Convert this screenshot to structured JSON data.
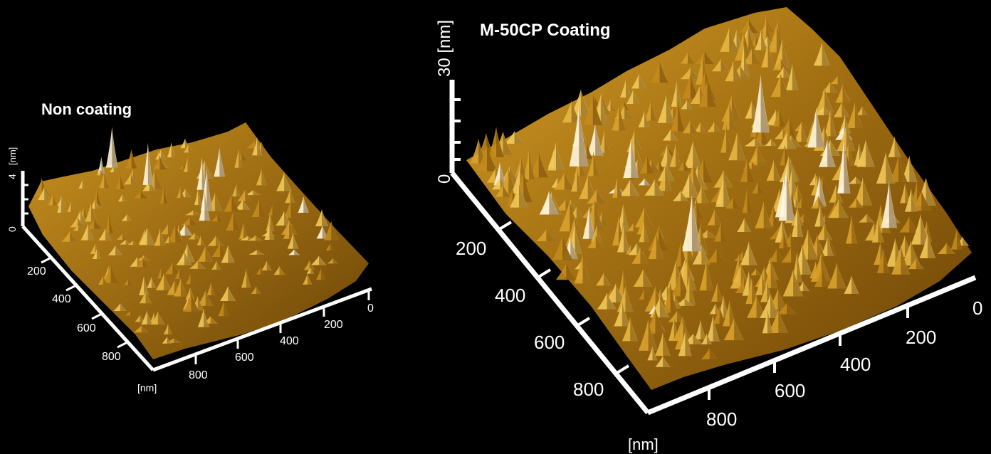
{
  "left": {
    "title": "Non coating",
    "z_unit": "[nm]",
    "z_max": "4",
    "z_min": "0",
    "y_ticks": [
      "200",
      "400",
      "600",
      "800"
    ],
    "x_ticks": [
      "0",
      "200",
      "400",
      "600",
      "800"
    ],
    "axis_unit": "[nm]"
  },
  "right": {
    "title": "M-50CP Coating",
    "z_unit": "30 [nm]",
    "z_min": "0",
    "y_ticks": [
      "200",
      "400",
      "600",
      "800"
    ],
    "x_ticks": [
      "0",
      "200",
      "400",
      "600",
      "800"
    ],
    "axis_unit": "[nm]"
  },
  "colors": {
    "background": "#000000",
    "surface_dark": "#5a3a08",
    "surface_mid": "#b07a18",
    "surface_light": "#f0c860",
    "peak": "#ffffff"
  }
}
